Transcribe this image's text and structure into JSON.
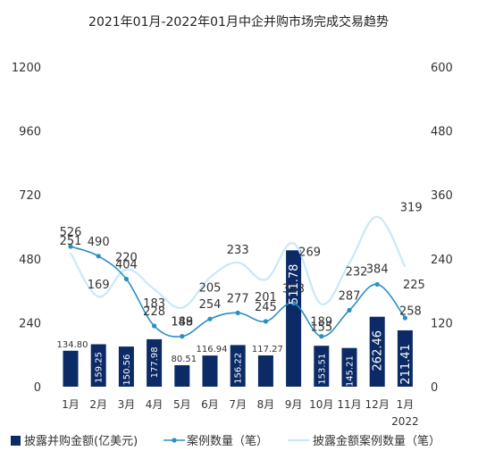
{
  "chart_data": {
    "type": "bar",
    "title": "2021年01月-2022年01月中企并购市场完成交易趋势",
    "categories": [
      "1月",
      "2月",
      "3月",
      "4月",
      "5月",
      "6月",
      "7月",
      "8月",
      "9月",
      "10月",
      "11月",
      "12月",
      "1月"
    ],
    "x_sublabel": "2022",
    "series": [
      {
        "name": "披露并购金额(亿美元)",
        "kind": "bar",
        "axis": "left",
        "color": "#0b2a66",
        "values": [
          134.8,
          159.25,
          150.56,
          177.98,
          80.51,
          116.94,
          156.22,
          117.27,
          511.78,
          153.51,
          145.21,
          262.46,
          211.41
        ],
        "labels": [
          "134.80",
          "159.25",
          "150.56",
          "177.98",
          "80.51",
          "116.94",
          "156.22",
          "117.27",
          "511.78",
          "153.51",
          "145.21",
          "262.46",
          "211.41"
        ],
        "label_vertical": [
          false,
          true,
          true,
          true,
          false,
          false,
          true,
          false,
          true,
          true,
          true,
          true,
          true
        ]
      },
      {
        "name": "案例数量（笔）",
        "kind": "line",
        "axis": "right",
        "color": "#2a8fc4",
        "values": [
          263,
          245,
          202,
          114,
          94.5,
          127,
          138.5,
          122.5,
          156.5,
          94.5,
          143.5,
          192,
          129
        ],
        "labels": [
          "526",
          "490",
          "404",
          "228",
          "189",
          "254",
          "277",
          "245",
          "313",
          "189",
          "287",
          "384",
          "258"
        ]
      },
      {
        "name": "披露金额案例数量（笔）",
        "kind": "line",
        "axis": "right",
        "color": "#c9e8f6",
        "values": [
          251,
          169,
          220,
          183,
          148,
          205,
          233,
          201,
          269,
          155,
          232,
          319,
          225
        ]
      }
    ],
    "y_left": {
      "ticks": [
        "0",
        "240",
        "480",
        "720",
        "960",
        "1200"
      ],
      "min": 0,
      "max": 1200
    },
    "y_right": {
      "ticks": [
        "0",
        "120",
        "240",
        "360",
        "480",
        "600"
      ],
      "min": 0,
      "max": 600
    },
    "legend_position": "bottom"
  }
}
